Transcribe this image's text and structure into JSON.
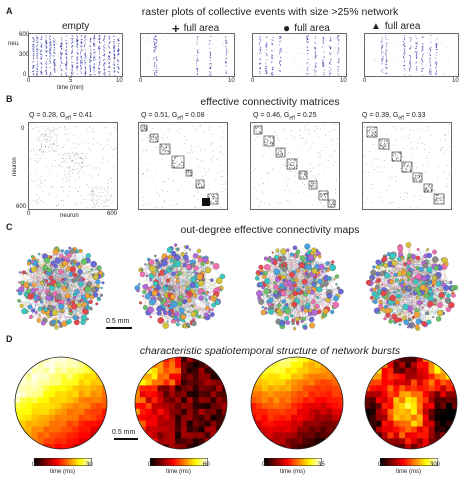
{
  "panels": {
    "A": {
      "letter": "A",
      "title": "raster plots of collective events with size >25% network",
      "conditions": [
        {
          "label": "empty",
          "icon": "",
          "icon_name": ""
        },
        {
          "label": "full area",
          "icon": "+",
          "icon_name": "plus-icon"
        },
        {
          "label": "full area",
          "icon": "●",
          "icon_name": "circle-icon"
        },
        {
          "label": "full area",
          "icon": "▲",
          "icon_name": "triangle-icon"
        }
      ],
      "y_label": "neu.",
      "x_label": "time (min)",
      "y_ticks": [
        "600",
        "300",
        "0"
      ],
      "x_ticks": [
        "0",
        "5",
        "10"
      ],
      "raster_color": "#3a3aa8"
    },
    "B": {
      "letter": "B",
      "title": "effective connectivity matrices",
      "stats": [
        "Q = 0.28, G",
        "Q = 0.51, G",
        "Q = 0.46, G",
        "Q = 0.39, G"
      ],
      "stats_sub": "eff",
      "stats_vals": [
        "= 0.41",
        "= 0.08",
        "= 0.25",
        "= 0.33"
      ],
      "y_label": "neuron",
      "x_label": "neuron",
      "ticks": [
        "0",
        "600"
      ]
    },
    "C": {
      "letter": "C",
      "title": "out-degree effective connectivity maps",
      "scale_label": "0.5 mm"
    },
    "D": {
      "letter": "D",
      "title": "characteristic spatiotemporal structure of network bursts",
      "scale_label": "0.5 mm",
      "colorbars": [
        {
          "min": "0",
          "max": "30",
          "label": "time (ms)"
        },
        {
          "min": "0",
          "max": "60",
          "label": "time (ms)"
        },
        {
          "min": "0",
          "max": "35",
          "label": "time (ms)"
        },
        {
          "min": "0",
          "max": "300",
          "label": "time (ms)"
        }
      ]
    }
  }
}
